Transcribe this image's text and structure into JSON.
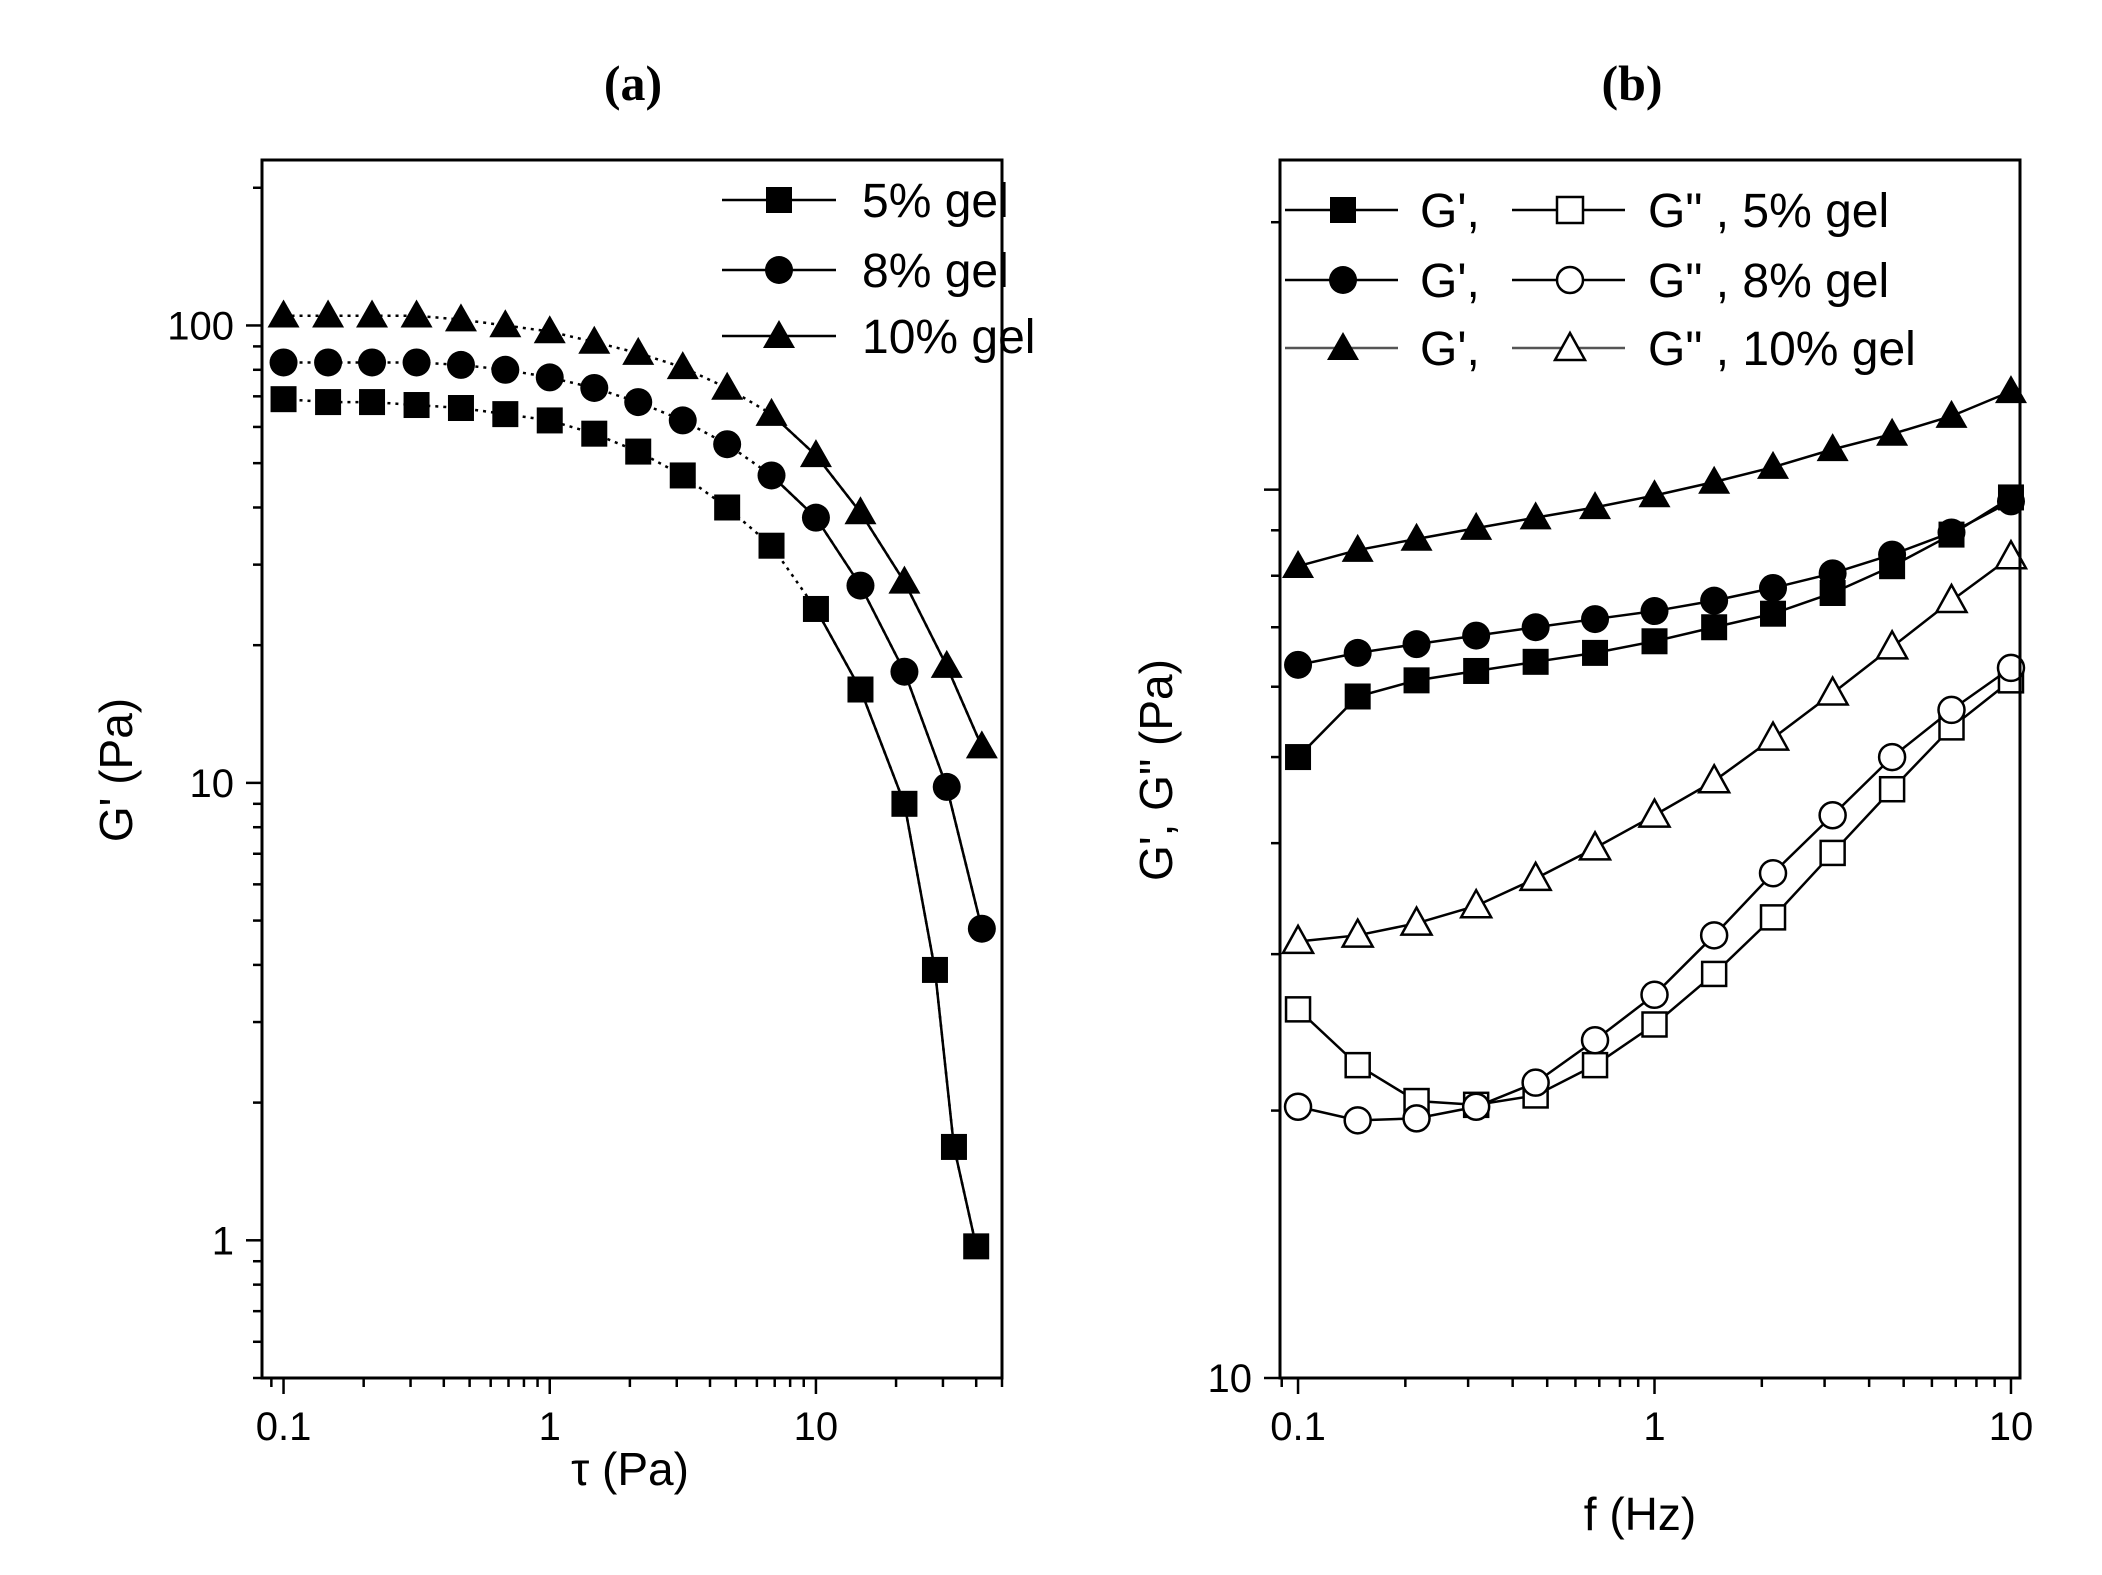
{
  "chart_data": [
    {
      "panel": "(a)",
      "type": "line",
      "title": "(a)",
      "xlabel": "τ (Pa)",
      "ylabel": "G' (Pa)",
      "xscale": "log",
      "yscale": "log",
      "xlim": [
        0.083,
        50
      ],
      "ylim": [
        0.5,
        230
      ],
      "x_ticks": [
        {
          "value": 0.1,
          "label": "0.1"
        },
        {
          "value": 1,
          "label": "1"
        },
        {
          "value": 10,
          "label": "10"
        }
      ],
      "y_ticks": [
        {
          "value": 1,
          "label": "1"
        },
        {
          "value": 10,
          "label": "10"
        },
        {
          "value": 100,
          "label": "100"
        }
      ],
      "legend_position": "top-right",
      "series": [
        {
          "name": "5% gel",
          "marker": "square",
          "filled": true,
          "x": [
            0.1,
            0.147,
            0.215,
            0.316,
            0.464,
            0.681,
            1.0,
            1.47,
            2.15,
            3.16,
            4.64,
            6.81,
            10.0,
            14.7,
            21.5,
            28.0,
            33.0,
            40.0
          ],
          "y": [
            69,
            68,
            68,
            67,
            66,
            64,
            62,
            58,
            53,
            47,
            40,
            33,
            24,
            16,
            9,
            3.9,
            1.6,
            0.97
          ]
        },
        {
          "name": "8% gel",
          "marker": "circle",
          "filled": true,
          "x": [
            0.1,
            0.147,
            0.215,
            0.316,
            0.464,
            0.681,
            1.0,
            1.47,
            2.15,
            3.16,
            4.64,
            6.81,
            10.0,
            14.7,
            21.5,
            31.0,
            42.0
          ],
          "y": [
            83,
            83,
            83,
            83,
            82,
            80,
            77,
            73,
            68,
            62,
            55,
            47,
            38,
            27,
            17.5,
            9.8,
            4.8
          ]
        },
        {
          "name": "10% gel",
          "marker": "triangle",
          "filled": true,
          "x": [
            0.1,
            0.147,
            0.215,
            0.316,
            0.464,
            0.681,
            1.0,
            1.47,
            2.15,
            3.16,
            4.64,
            6.81,
            10.0,
            14.7,
            21.5,
            31.0,
            42.0
          ],
          "y": [
            105,
            105,
            105,
            105,
            103,
            100,
            97,
            92,
            87,
            81,
            73,
            64,
            52,
            39,
            27.5,
            18,
            12
          ]
        }
      ]
    },
    {
      "panel": "(b)",
      "type": "line",
      "title": "(b)",
      "xlabel": "f (Hz)",
      "ylabel": "G', G\" (Pa)",
      "xscale": "log",
      "yscale": "log",
      "xlim": [
        0.089,
        10.6
      ],
      "ylim": [
        10,
        235
      ],
      "x_ticks": [
        {
          "value": 0.1,
          "label": "0.1"
        },
        {
          "value": 1,
          "label": "1"
        },
        {
          "value": 10,
          "label": "10"
        }
      ],
      "y_ticks": [
        {
          "value": 10,
          "label": "10"
        }
      ],
      "legend_position": "top-left",
      "legend_rows": [
        {
          "left_text": "G',",
          "right_text": "G\" , 5% gel",
          "marker": "square"
        },
        {
          "left_text": "G',",
          "right_text": "G\" , 8% gel",
          "marker": "circle"
        },
        {
          "left_text": "G',",
          "right_text": "G\" , 10% gel",
          "marker": "triangle"
        }
      ],
      "series": [
        {
          "name": "G', 5% gel",
          "marker": "square",
          "filled": true,
          "x": [
            0.1,
            0.147,
            0.215,
            0.316,
            0.464,
            0.681,
            1.0,
            1.47,
            2.15,
            3.16,
            4.64,
            6.81,
            10.0
          ],
          "y": [
            50,
            58.5,
            61,
            62.5,
            64,
            65.5,
            67.5,
            70,
            72.5,
            76.5,
            82,
            89,
            98
          ]
        },
        {
          "name": "G\", 5% gel",
          "marker": "square",
          "filled": false,
          "x": [
            0.1,
            0.147,
            0.215,
            0.316,
            0.464,
            0.681,
            1.0,
            1.47,
            2.15,
            3.16,
            4.64,
            6.81,
            10.0
          ],
          "y": [
            26,
            22.5,
            20.5,
            20.3,
            20.8,
            22.5,
            25,
            28.5,
            33,
            39,
            46,
            54,
            61
          ]
        },
        {
          "name": "G', 8% gel",
          "marker": "circle",
          "filled": true,
          "x": [
            0.1,
            0.147,
            0.215,
            0.316,
            0.464,
            0.681,
            1.0,
            1.47,
            2.15,
            3.16,
            4.64,
            6.81,
            10.0
          ],
          "y": [
            63.5,
            65.5,
            67,
            68.5,
            70,
            71.5,
            73,
            75,
            77.5,
            80.5,
            84.5,
            89.5,
            97
          ]
        },
        {
          "name": "G\", 8% gel",
          "marker": "circle",
          "filled": false,
          "x": [
            0.1,
            0.147,
            0.215,
            0.316,
            0.464,
            0.681,
            1.0,
            1.47,
            2.15,
            3.16,
            4.64,
            6.81,
            10.0
          ],
          "y": [
            20.2,
            19.5,
            19.6,
            20.2,
            21.5,
            24,
            27,
            31.5,
            37,
            43,
            50,
            56.5,
            63
          ]
        },
        {
          "name": "G', 10% gel",
          "marker": "triangle",
          "filled": true,
          "x": [
            0.1,
            0.147,
            0.215,
            0.316,
            0.464,
            0.681,
            1.0,
            1.47,
            2.15,
            3.16,
            4.64,
            6.81,
            10.0
          ],
          "y": [
            82,
            85.5,
            88,
            90.5,
            93,
            95.5,
            98.5,
            102,
            106,
            111,
            115.5,
            121,
            129
          ]
        },
        {
          "name": "G\", 10% gel",
          "marker": "triangle",
          "filled": false,
          "x": [
            0.1,
            0.147,
            0.215,
            0.316,
            0.464,
            0.681,
            1.0,
            1.47,
            2.15,
            3.16,
            4.64,
            6.81,
            10.0
          ],
          "y": [
            31,
            31.5,
            32.5,
            34,
            36.5,
            39.5,
            43,
            47,
            52.5,
            59,
            66.5,
            75,
            84
          ]
        }
      ]
    }
  ]
}
